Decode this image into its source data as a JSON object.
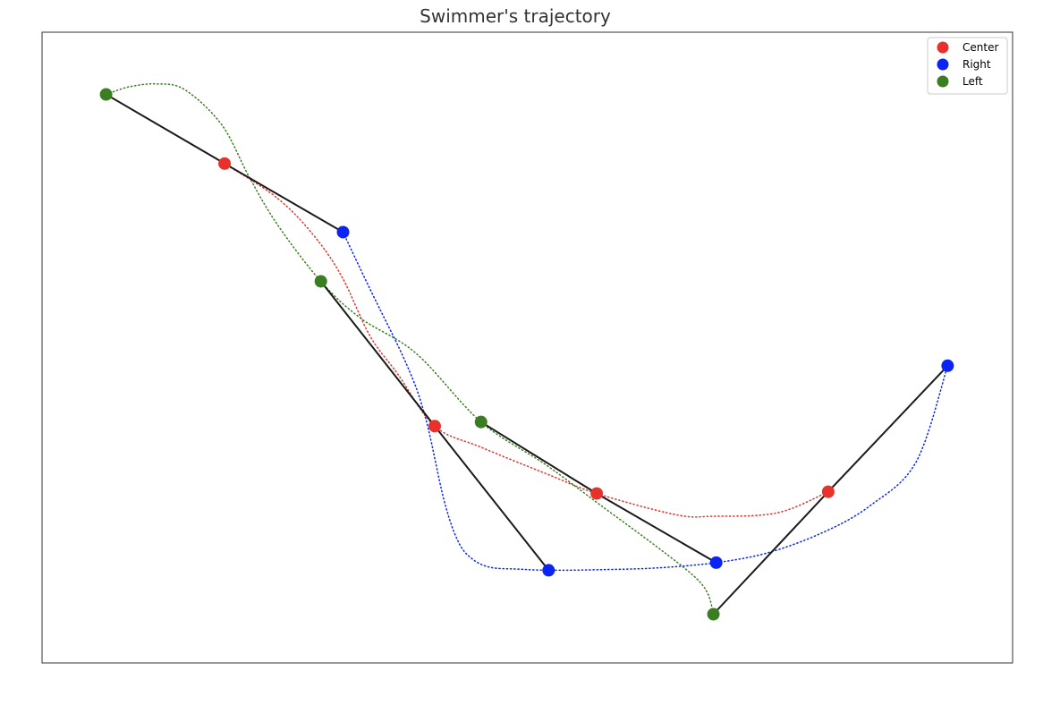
{
  "chart_data": {
    "type": "scatter",
    "title": "Swimmer's trajectory",
    "xlabel": "",
    "ylabel": "",
    "axes_visible": false,
    "grid": false,
    "legend_placement": "top-right",
    "xlim": [
      0,
      1000
    ],
    "ylim": [
      0,
      1000
    ],
    "series": [
      {
        "name": "Center",
        "color": "#e8312a",
        "points": [
          [
            173,
            814
          ],
          [
            400,
            366
          ],
          [
            575,
            251
          ],
          [
            825,
            254
          ]
        ],
        "path": [
          [
            173,
            814
          ],
          [
            230,
            755
          ],
          [
            270,
            690
          ],
          [
            300,
            620
          ],
          [
            330,
            520
          ],
          [
            360,
            455
          ],
          [
            400,
            366
          ],
          [
            450,
            330
          ],
          [
            520,
            285
          ],
          [
            575,
            251
          ],
          [
            660,
            215
          ],
          [
            700,
            212
          ],
          [
            770,
            218
          ],
          [
            825,
            254
          ]
        ]
      },
      {
        "name": "Right",
        "color": "#0a24f5",
        "points": [
          [
            301,
            697
          ],
          [
            523,
            120
          ],
          [
            704,
            133
          ],
          [
            954,
            469
          ]
        ],
        "path": [
          [
            301,
            697
          ],
          [
            330,
            600
          ],
          [
            370,
            470
          ],
          [
            390,
            380
          ],
          [
            410,
            240
          ],
          [
            425,
            170
          ],
          [
            440,
            140
          ],
          [
            460,
            125
          ],
          [
            490,
            122
          ],
          [
            523,
            120
          ],
          [
            580,
            121
          ],
          [
            640,
            124
          ],
          [
            704,
            133
          ],
          [
            760,
            150
          ],
          [
            820,
            185
          ],
          [
            870,
            230
          ],
          [
            920,
            305
          ],
          [
            954,
            469
          ]
        ]
      },
      {
        "name": "Left",
        "color": "#3a7d22",
        "points": [
          [
            45,
            932
          ],
          [
            277,
            613
          ],
          [
            450,
            373
          ],
          [
            701,
            45
          ]
        ],
        "path": [
          [
            45,
            932
          ],
          [
            70,
            945
          ],
          [
            100,
            950
          ],
          [
            130,
            940
          ],
          [
            170,
            880
          ],
          [
            200,
            790
          ],
          [
            230,
            710
          ],
          [
            277,
            613
          ],
          [
            320,
            550
          ],
          [
            380,
            490
          ],
          [
            450,
            373
          ],
          [
            520,
            300
          ],
          [
            580,
            230
          ],
          [
            640,
            160
          ],
          [
            680,
            110
          ],
          [
            695,
            80
          ],
          [
            701,
            45
          ]
        ]
      }
    ],
    "links": [
      [
        [
          45,
          932
        ],
        [
          173,
          814
        ],
        [
          301,
          697
        ]
      ],
      [
        [
          277,
          613
        ],
        [
          400,
          366
        ],
        [
          523,
          120
        ]
      ],
      [
        [
          450,
          373
        ],
        [
          575,
          251
        ],
        [
          704,
          133
        ]
      ],
      [
        [
          701,
          45
        ],
        [
          825,
          254
        ],
        [
          954,
          469
        ]
      ]
    ],
    "link_color": "#1a1a1a"
  }
}
